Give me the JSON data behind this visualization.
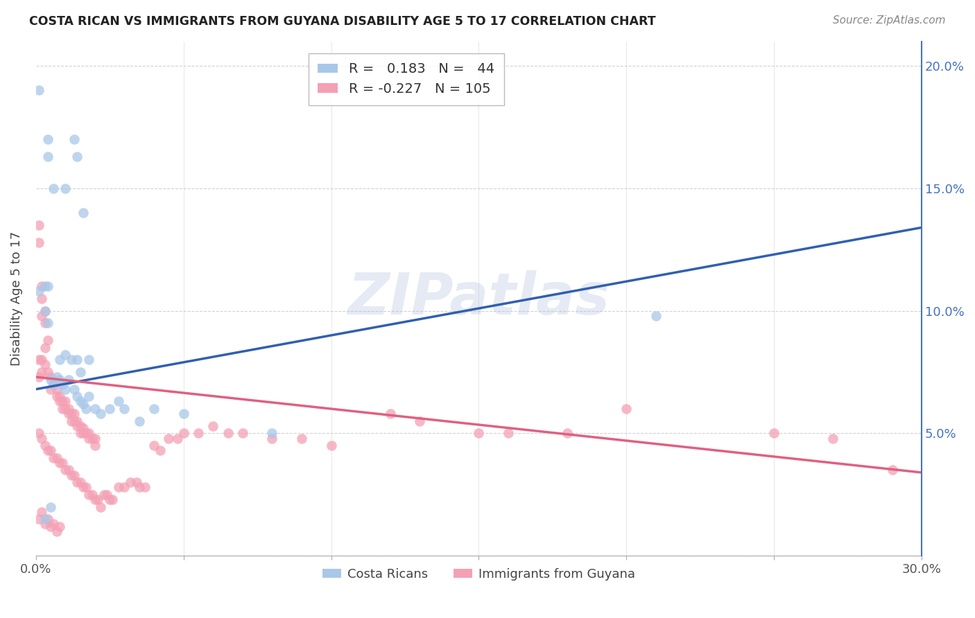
{
  "title": "COSTA RICAN VS IMMIGRANTS FROM GUYANA DISABILITY AGE 5 TO 17 CORRELATION CHART",
  "source": "Source: ZipAtlas.com",
  "ylabel": "Disability Age 5 to 17",
  "xlabel_blue": "Costa Ricans",
  "xlabel_pink": "Immigrants from Guyana",
  "xmin": 0.0,
  "xmax": 0.3,
  "ymin": 0.0,
  "ymax": 0.21,
  "blue_r": "0.183",
  "blue_n": "44",
  "pink_r": "-0.227",
  "pink_n": "105",
  "blue_color": "#a8c8e8",
  "pink_color": "#f4a0b5",
  "blue_line_color": "#3060b0",
  "pink_line_color": "#e06080",
  "watermark": "ZIPatlas",
  "blue_intercept": 0.068,
  "blue_slope": 0.22,
  "pink_intercept": 0.073,
  "pink_slope": -0.13,
  "blue_points": [
    [
      0.001,
      0.19
    ],
    [
      0.004,
      0.17
    ],
    [
      0.004,
      0.163
    ],
    [
      0.006,
      0.15
    ],
    [
      0.01,
      0.15
    ],
    [
      0.013,
      0.17
    ],
    [
      0.014,
      0.163
    ],
    [
      0.016,
      0.14
    ],
    [
      0.004,
      0.11
    ],
    [
      0.003,
      0.1
    ],
    [
      0.004,
      0.095
    ],
    [
      0.003,
      0.11
    ],
    [
      0.001,
      0.108
    ],
    [
      0.008,
      0.08
    ],
    [
      0.01,
      0.082
    ],
    [
      0.012,
      0.08
    ],
    [
      0.014,
      0.08
    ],
    [
      0.015,
      0.075
    ],
    [
      0.018,
      0.08
    ],
    [
      0.005,
      0.072
    ],
    [
      0.006,
      0.07
    ],
    [
      0.007,
      0.073
    ],
    [
      0.008,
      0.072
    ],
    [
      0.009,
      0.07
    ],
    [
      0.01,
      0.068
    ],
    [
      0.011,
      0.072
    ],
    [
      0.013,
      0.068
    ],
    [
      0.014,
      0.065
    ],
    [
      0.015,
      0.063
    ],
    [
      0.016,
      0.062
    ],
    [
      0.017,
      0.06
    ],
    [
      0.018,
      0.065
    ],
    [
      0.02,
      0.06
    ],
    [
      0.022,
      0.058
    ],
    [
      0.025,
      0.06
    ],
    [
      0.028,
      0.063
    ],
    [
      0.03,
      0.06
    ],
    [
      0.035,
      0.055
    ],
    [
      0.04,
      0.06
    ],
    [
      0.05,
      0.058
    ],
    [
      0.08,
      0.05
    ],
    [
      0.21,
      0.098
    ],
    [
      0.003,
      0.015
    ],
    [
      0.005,
      0.02
    ]
  ],
  "pink_points": [
    [
      0.001,
      0.135
    ],
    [
      0.001,
      0.128
    ],
    [
      0.002,
      0.11
    ],
    [
      0.002,
      0.105
    ],
    [
      0.002,
      0.098
    ],
    [
      0.003,
      0.1
    ],
    [
      0.003,
      0.095
    ],
    [
      0.001,
      0.08
    ],
    [
      0.002,
      0.08
    ],
    [
      0.003,
      0.085
    ],
    [
      0.004,
      0.088
    ],
    [
      0.001,
      0.073
    ],
    [
      0.002,
      0.075
    ],
    [
      0.003,
      0.078
    ],
    [
      0.004,
      0.075
    ],
    [
      0.005,
      0.073
    ],
    [
      0.005,
      0.068
    ],
    [
      0.006,
      0.07
    ],
    [
      0.007,
      0.068
    ],
    [
      0.007,
      0.065
    ],
    [
      0.008,
      0.065
    ],
    [
      0.008,
      0.063
    ],
    [
      0.009,
      0.063
    ],
    [
      0.009,
      0.06
    ],
    [
      0.01,
      0.063
    ],
    [
      0.01,
      0.06
    ],
    [
      0.011,
      0.06
    ],
    [
      0.011,
      0.058
    ],
    [
      0.012,
      0.058
    ],
    [
      0.012,
      0.055
    ],
    [
      0.013,
      0.058
    ],
    [
      0.013,
      0.055
    ],
    [
      0.014,
      0.055
    ],
    [
      0.014,
      0.053
    ],
    [
      0.015,
      0.053
    ],
    [
      0.015,
      0.05
    ],
    [
      0.016,
      0.052
    ],
    [
      0.016,
      0.05
    ],
    [
      0.017,
      0.05
    ],
    [
      0.018,
      0.05
    ],
    [
      0.018,
      0.048
    ],
    [
      0.019,
      0.048
    ],
    [
      0.02,
      0.048
    ],
    [
      0.02,
      0.045
    ],
    [
      0.001,
      0.05
    ],
    [
      0.002,
      0.048
    ],
    [
      0.003,
      0.045
    ],
    [
      0.004,
      0.043
    ],
    [
      0.005,
      0.043
    ],
    [
      0.006,
      0.04
    ],
    [
      0.007,
      0.04
    ],
    [
      0.008,
      0.038
    ],
    [
      0.009,
      0.038
    ],
    [
      0.01,
      0.035
    ],
    [
      0.011,
      0.035
    ],
    [
      0.012,
      0.033
    ],
    [
      0.013,
      0.033
    ],
    [
      0.014,
      0.03
    ],
    [
      0.015,
      0.03
    ],
    [
      0.016,
      0.028
    ],
    [
      0.017,
      0.028
    ],
    [
      0.018,
      0.025
    ],
    [
      0.019,
      0.025
    ],
    [
      0.02,
      0.023
    ],
    [
      0.021,
      0.023
    ],
    [
      0.022,
      0.02
    ],
    [
      0.023,
      0.025
    ],
    [
      0.024,
      0.025
    ],
    [
      0.025,
      0.023
    ],
    [
      0.026,
      0.023
    ],
    [
      0.028,
      0.028
    ],
    [
      0.03,
      0.028
    ],
    [
      0.032,
      0.03
    ],
    [
      0.034,
      0.03
    ],
    [
      0.035,
      0.028
    ],
    [
      0.037,
      0.028
    ],
    [
      0.04,
      0.045
    ],
    [
      0.042,
      0.043
    ],
    [
      0.045,
      0.048
    ],
    [
      0.048,
      0.048
    ],
    [
      0.05,
      0.05
    ],
    [
      0.055,
      0.05
    ],
    [
      0.06,
      0.053
    ],
    [
      0.065,
      0.05
    ],
    [
      0.07,
      0.05
    ],
    [
      0.08,
      0.048
    ],
    [
      0.09,
      0.048
    ],
    [
      0.1,
      0.045
    ],
    [
      0.12,
      0.058
    ],
    [
      0.13,
      0.055
    ],
    [
      0.15,
      0.05
    ],
    [
      0.16,
      0.05
    ],
    [
      0.18,
      0.05
    ],
    [
      0.2,
      0.06
    ],
    [
      0.25,
      0.05
    ],
    [
      0.27,
      0.048
    ],
    [
      0.29,
      0.035
    ],
    [
      0.001,
      0.015
    ],
    [
      0.002,
      0.018
    ],
    [
      0.003,
      0.013
    ],
    [
      0.004,
      0.015
    ],
    [
      0.005,
      0.012
    ],
    [
      0.006,
      0.013
    ],
    [
      0.007,
      0.01
    ],
    [
      0.008,
      0.012
    ]
  ]
}
